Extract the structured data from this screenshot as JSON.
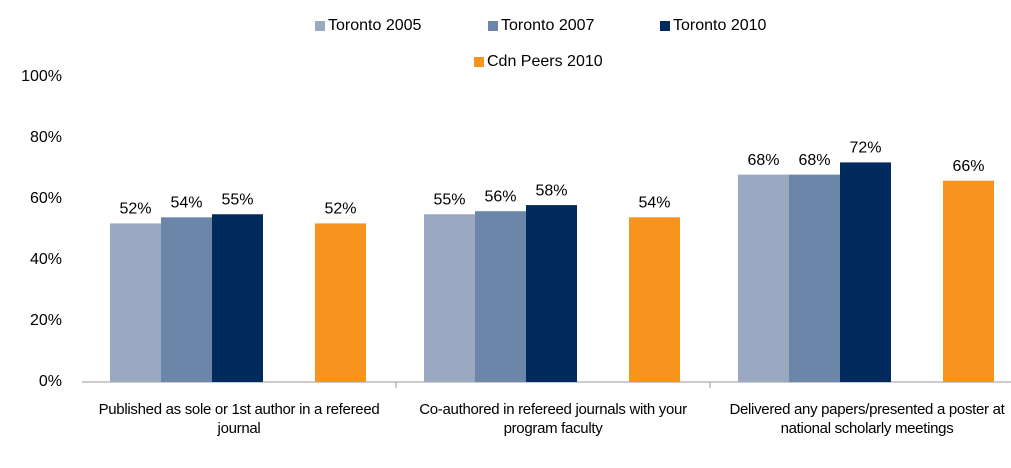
{
  "chart_data": {
    "type": "bar",
    "categories": [
      "Published as sole or 1st author in a refereed journal",
      "Co-authored in refereed journals with your program faculty",
      "Delivered any papers/presented a poster at national scholarly meetings"
    ],
    "series": [
      {
        "name": "Toronto 2005",
        "color": "#9aa9c1",
        "values": [
          52,
          55,
          68
        ],
        "value_labels": [
          "52%",
          "55%",
          "68%"
        ]
      },
      {
        "name": "Toronto 2007",
        "color": "#6b86a8",
        "values": [
          54,
          56,
          68
        ],
        "value_labels": [
          "54%",
          "56%",
          "68%"
        ]
      },
      {
        "name": "Toronto 2010",
        "color": "#002b5c",
        "values": [
          55,
          58,
          72
        ],
        "value_labels": [
          "55%",
          "58%",
          "72%"
        ]
      },
      {
        "name": "Cdn Peers 2010",
        "color": "#f7941d",
        "values": [
          52,
          54,
          66
        ],
        "value_labels": [
          "52%",
          "54%",
          "66%"
        ]
      }
    ],
    "ylim": [
      0,
      100
    ],
    "yticks": [
      {
        "value": 0,
        "label": "0%"
      },
      {
        "value": 20,
        "label": "20%"
      },
      {
        "value": 40,
        "label": "40%"
      },
      {
        "value": 60,
        "label": "60%"
      },
      {
        "value": 80,
        "label": "80%"
      },
      {
        "value": 100,
        "label": "100%"
      }
    ],
    "legend": "top"
  }
}
